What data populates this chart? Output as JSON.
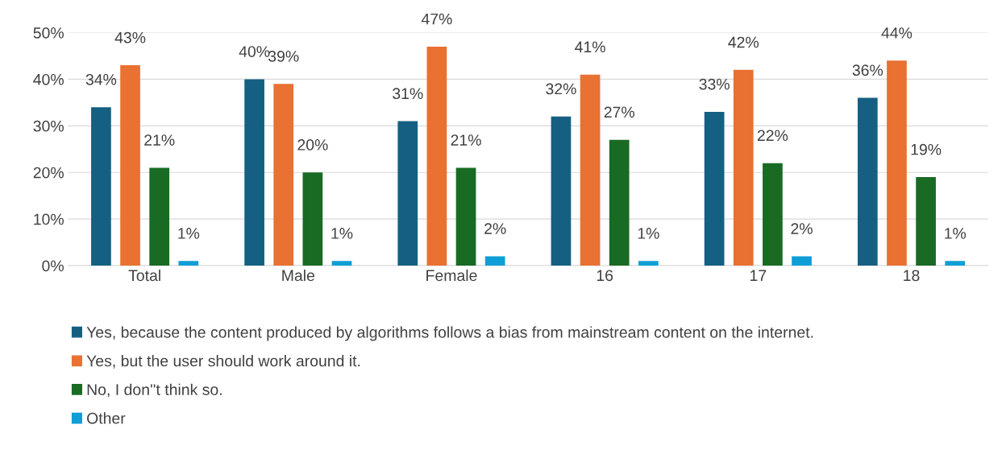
{
  "chart_data": {
    "type": "bar",
    "categories": [
      "Total",
      "Male",
      "Female",
      "16",
      "17",
      "18"
    ],
    "series": [
      {
        "name": "Yes, because the content produced by algorithms follows a bias from mainstream content on the internet.",
        "color": "#156082",
        "values": [
          34,
          40,
          31,
          32,
          33,
          36
        ],
        "value_labels": [
          "34%",
          "40%",
          "31%",
          "32%",
          "33%",
          "36%"
        ]
      },
      {
        "name": "Yes, but the user should work around it.",
        "color": "#e97132",
        "values": [
          43,
          39,
          47,
          41,
          42,
          44
        ],
        "value_labels": [
          "43%",
          "39%",
          "47%",
          "41%",
          "42%",
          "44%"
        ]
      },
      {
        "name": "No, I don''t think so.",
        "color": "#196b24",
        "values": [
          21,
          20,
          21,
          27,
          22,
          19
        ],
        "value_labels": [
          "21%",
          "20%",
          "21%",
          "27%",
          "22%",
          "19%"
        ]
      },
      {
        "name": "Other",
        "color": "#0f9ed5",
        "values": [
          1,
          1,
          2,
          1,
          2,
          1
        ],
        "value_labels": [
          "1%",
          "1%",
          "2%",
          "1%",
          "2%",
          "1%"
        ]
      }
    ],
    "ylim": [
      0,
      50
    ],
    "yticks": [
      {
        "value": 0,
        "label": "0%"
      },
      {
        "value": 10,
        "label": "10%"
      },
      {
        "value": 20,
        "label": "20%"
      },
      {
        "value": 30,
        "label": "30%"
      },
      {
        "value": 40,
        "label": "40%"
      },
      {
        "value": 50,
        "label": "50%"
      }
    ],
    "grid": "y",
    "legend": "bottom"
  }
}
